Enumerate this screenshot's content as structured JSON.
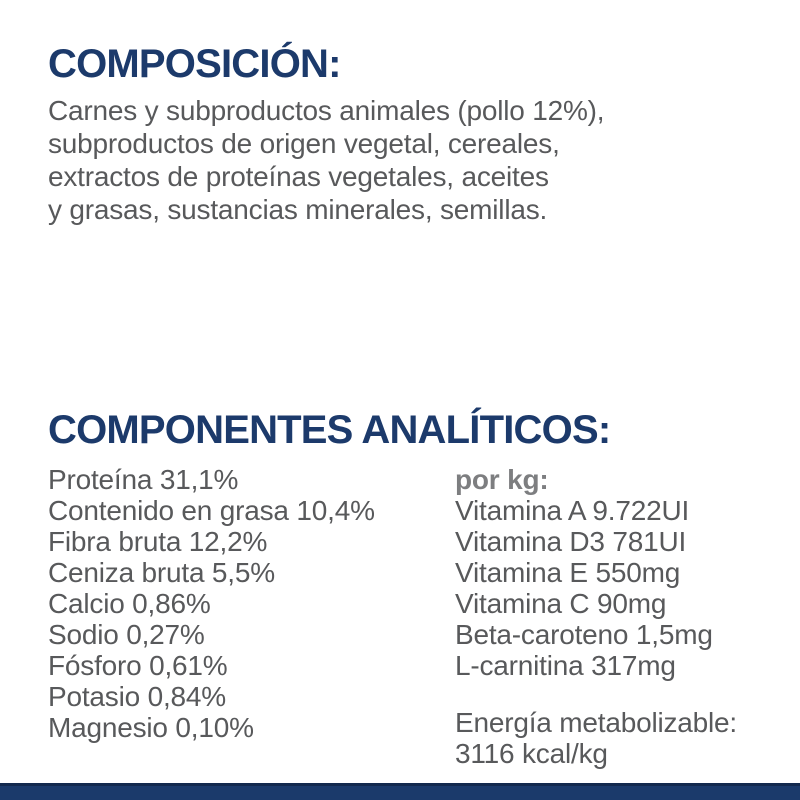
{
  "colors": {
    "heading_navy": "#1c3a6b",
    "body_gray": "#58595b",
    "per_kg_gray": "#7d7e80",
    "footer_bar": "#1b3a6b",
    "footer_bar_edge": "#13294e"
  },
  "composition": {
    "heading": "COMPOSICIÓN:",
    "lines": [
      "Carnes y subproductos animales (pollo 12%),",
      "subproductos de origen vegetal, cereales,",
      "extractos de proteínas vegetales, aceites",
      "y grasas, sustancias minerales, semillas."
    ]
  },
  "analytical": {
    "heading": "COMPONENTES ANALÍTICOS:",
    "left_column": [
      "Proteína 31,1%",
      "Contenido en grasa 10,4%",
      "Fibra bruta 12,2%",
      "Ceniza bruta 5,5%",
      "Calcio 0,86%",
      "Sodio 0,27%",
      "Fósforo 0,61%",
      "Potasio 0,84%",
      "Magnesio 0,10%"
    ],
    "right_column": {
      "header": "por kg:",
      "items": [
        "Vitamina A 9.722UI",
        "Vitamina D3 781UI",
        "Vitamina E 550mg",
        "Vitamina C 90mg",
        "Beta-caroteno 1,5mg",
        "L-carnitina 317mg"
      ],
      "energy": [
        "Energía metabolizable:",
        "3116 kcal/kg"
      ]
    }
  }
}
